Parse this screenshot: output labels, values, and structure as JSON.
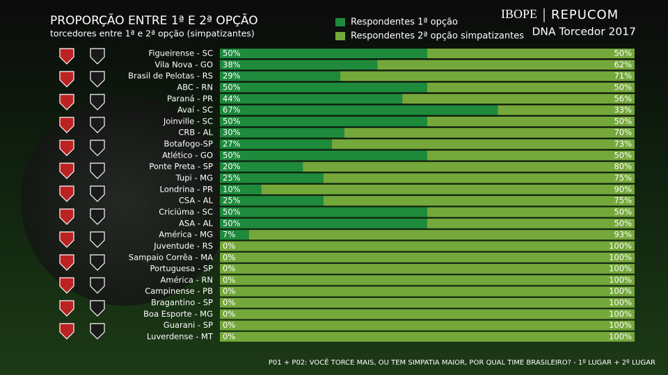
{
  "chart_data": {
    "type": "stacked-bar-horizontal",
    "title": "PROPORÇÃO ENTRE 1ª E 2ª OPÇÃO",
    "subtitle": "torcedores entre 1ª e 2ª opção (simpatizantes)",
    "brand": "IBOPE",
    "brand_partner": "REPUCOM",
    "brand_subtitle": "DNA Torcedor 2017",
    "footnote": "P01 + P02: VOCÊ TORCE MAIS, OU TEM SIMPATIA MAIOR, POR QUAL TIME BRASILEIRO? - 1º LUGAR + 2º LUGAR",
    "categories": [
      "Figueirense - SC",
      "Vila Nova - GO",
      "Brasil de Pelotas - RS",
      "ABC - RN",
      "Paraná - PR",
      "Avaí - SC",
      "Joinville - SC",
      "CRB - AL",
      "Botafogo-SP",
      "Atlético - GO",
      "Ponte Preta - SP",
      "Tupi - MG",
      "Londrina - PR",
      "CSA - AL",
      "Criciúma - SC",
      "ASA - AL",
      "América - MG",
      "Juventude - RS",
      "Sampaio Corrêa - MA",
      "Portuguesa - SP",
      "América - RN",
      "Campinense - PB",
      "Bragantino - SP",
      "Boa Esporte - MG",
      "Guarani - SP",
      "Luverdense - MT"
    ],
    "series": [
      {
        "name": "Respondentes 1ª opção",
        "color": "#1e8a3c",
        "values": [
          50,
          38,
          29,
          50,
          44,
          67,
          50,
          30,
          27,
          50,
          20,
          25,
          10,
          25,
          50,
          50,
          7,
          0,
          0,
          0,
          0,
          0,
          0,
          0,
          0,
          0
        ],
        "value_labels": [
          "50%",
          "38%",
          "29%",
          "50%",
          "44%",
          "67%",
          "50%",
          "30%",
          "27%",
          "50%",
          "20%",
          "25%",
          "10%",
          "25%",
          "50%",
          "50%",
          "7%",
          "0%",
          "0%",
          "0%",
          "0%",
          "0%",
          "0%",
          "0%",
          "0%",
          "0%"
        ]
      },
      {
        "name": "Respondentes 2ª opção simpatizantes",
        "color": "#75a83b",
        "values": [
          50,
          62,
          71,
          50,
          56,
          33,
          50,
          70,
          73,
          50,
          80,
          75,
          90,
          75,
          50,
          50,
          93,
          100,
          100,
          100,
          100,
          100,
          100,
          100,
          100,
          100
        ],
        "value_labels": [
          "50%",
          "62%",
          "71%",
          "50%",
          "56%",
          "33%",
          "50%",
          "70%",
          "73%",
          "50%",
          "80%",
          "75%",
          "90%",
          "75%",
          "50%",
          "50%",
          "93%",
          "100%",
          "100%",
          "100%",
          "100%",
          "100%",
          "100%",
          "100%",
          "100%",
          "100%"
        ]
      }
    ]
  }
}
